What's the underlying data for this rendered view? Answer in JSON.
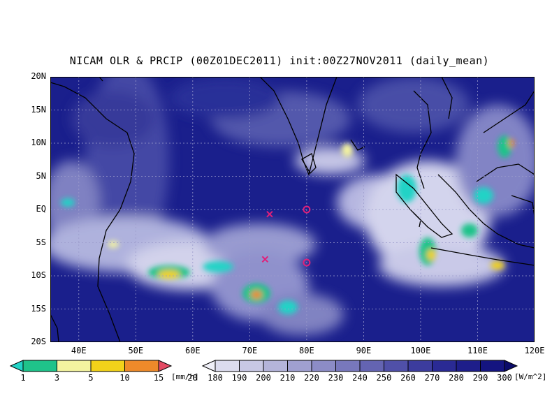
{
  "title": "NICAM OLR & PRCIP (00Z01DEC2011) init:00Z27NOV2011 (daily_mean)",
  "map": {
    "lon_range": [
      35,
      120
    ],
    "lat_range": [
      -20,
      20
    ],
    "lat_labels": [
      "20N",
      "15N",
      "10N",
      "5N",
      "EQ",
      "5S",
      "10S",
      "15S",
      "20S"
    ],
    "lat_values": [
      20,
      15,
      10,
      5,
      0,
      -5,
      -10,
      -15,
      -20
    ],
    "lon_labels": [
      "40E",
      "50E",
      "60E",
      "70E",
      "80E",
      "90E",
      "100E",
      "110E",
      "120E"
    ],
    "lon_values": [
      40,
      50,
      60,
      70,
      80,
      90,
      100,
      110,
      120
    ],
    "background_color": "#1a1f8c",
    "markers": [
      {
        "type": "cross",
        "lon": 73.5,
        "lat": -0.7,
        "color": "#e0207a"
      },
      {
        "type": "cross",
        "lon": 72.7,
        "lat": -7.5,
        "color": "#e0207a"
      },
      {
        "type": "circle",
        "lon": 80,
        "lat": 0,
        "color": "#e0207a"
      },
      {
        "type": "circle",
        "lon": 80,
        "lat": -8,
        "color": "#e0207a"
      }
    ]
  },
  "precip_colorbar": {
    "labels": [
      "1",
      "3",
      "5",
      "10",
      "15",
      "20"
    ],
    "unit": "[mm/h]",
    "colors": [
      "#22d3c6",
      "#1fc38a",
      "#f4f4a0",
      "#f2d21a",
      "#ee8a2a",
      "#e44a64"
    ]
  },
  "olr_colorbar": {
    "labels": [
      "180",
      "190",
      "200",
      "210",
      "220",
      "230",
      "240",
      "250",
      "260",
      "270",
      "280",
      "290",
      "300"
    ],
    "unit": "[W/m^2]",
    "colors": [
      "#f0f0f8",
      "#dcdcee",
      "#c8c8e4",
      "#b4b4da",
      "#a0a0d0",
      "#8c8cc6",
      "#7878bc",
      "#6464b2",
      "#5050a8",
      "#3c3c9e",
      "#2a2a94",
      "#1e1e8a",
      "#141480",
      "#0b0b6a"
    ]
  }
}
